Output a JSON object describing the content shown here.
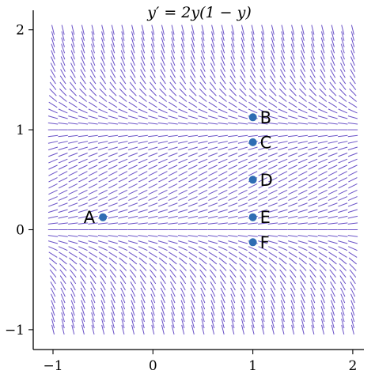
{
  "chart_data": {
    "type": "scatter",
    "title": "y′ = 2y(1 − y)",
    "xlabel": "",
    "ylabel": "",
    "xlim": [
      -1.2,
      2.1
    ],
    "ylim": [
      -1.2,
      2.1
    ],
    "xticks": [
      -1,
      0,
      1,
      2
    ],
    "yticks": [
      -1,
      0,
      1,
      2
    ],
    "xtick_labels": [
      "−1",
      "0",
      "1",
      "2"
    ],
    "ytick_labels": [
      "−1",
      "0",
      "1",
      "2"
    ],
    "grid": false,
    "slope_field": {
      "equation": "2*y*(1-y)",
      "x_range": [
        -1,
        2
      ],
      "y_range": [
        -1,
        2
      ],
      "x_step": 0.1,
      "y_step": 0.0625,
      "color": "#6a52c8"
    },
    "points": [
      {
        "label": "A",
        "x": -0.5,
        "y": 0.125
      },
      {
        "label": "B",
        "x": 1.0,
        "y": 1.125
      },
      {
        "label": "C",
        "x": 1.0,
        "y": 0.875
      },
      {
        "label": "D",
        "x": 1.0,
        "y": 0.5
      },
      {
        "label": "E",
        "x": 1.0,
        "y": 0.125
      },
      {
        "label": "F",
        "x": 1.0,
        "y": -0.125
      }
    ],
    "point_color": "#2f6db3"
  }
}
